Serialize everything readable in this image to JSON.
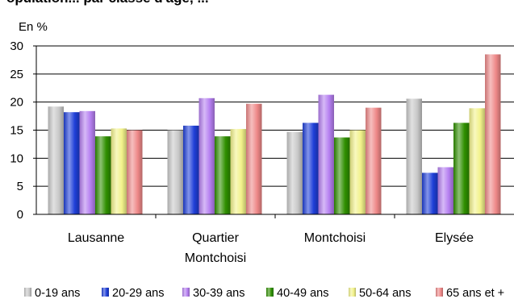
{
  "title_fragment": "opulation... par classe d'âge, ...",
  "chart_data": {
    "type": "bar",
    "ylabel": "En %",
    "ylim": [
      0,
      30
    ],
    "yticks": [
      0,
      5,
      10,
      15,
      20,
      25,
      30
    ],
    "grid": true,
    "legend_position": "bottom",
    "categories": [
      [
        "Lausanne"
      ],
      [
        "Quartier",
        "Montchoisi"
      ],
      [
        "Montchoisi"
      ],
      [
        "Elysée"
      ]
    ],
    "series": [
      {
        "name": "0-19 ans",
        "color": "#c8c8c8",
        "values": [
          19.2,
          15.0,
          14.7,
          20.6
        ]
      },
      {
        "name": "20-29 ans",
        "color": "#1f3fd8",
        "values": [
          18.2,
          15.8,
          16.3,
          7.4
        ]
      },
      {
        "name": "30-39 ans",
        "color": "#b57ff0",
        "values": [
          18.4,
          20.7,
          21.3,
          8.4
        ]
      },
      {
        "name": "40-49 ans",
        "color": "#2f8f00",
        "values": [
          13.9,
          13.9,
          13.7,
          16.3
        ]
      },
      {
        "name": "50-64 ans",
        "color": "#f2f28a",
        "values": [
          15.3,
          15.2,
          15.0,
          18.9
        ]
      },
      {
        "name": "65 ans et +",
        "color": "#ee8888",
        "values": [
          15.0,
          19.7,
          19.0,
          28.5
        ]
      }
    ]
  }
}
